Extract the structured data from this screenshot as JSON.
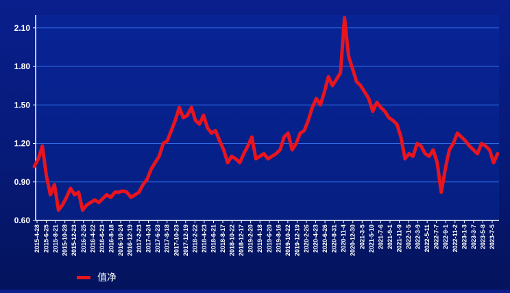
{
  "chart_data": {
    "type": "line",
    "title": "",
    "xlabel": "",
    "ylabel": "",
    "ylim": [
      0.6,
      2.2
    ],
    "yticks": [
      "0.60",
      "0.90",
      "1.20",
      "1.50",
      "1.80",
      "2.10"
    ],
    "grid": true,
    "legend_position": "bottom-left",
    "colors": {
      "line": "#e8141e",
      "grid": "#2f6fe8",
      "axis": "#ffffff",
      "text": "#ffffff"
    },
    "x_tick_labels": [
      "2015-4-28",
      "2015-6-25",
      "2015-8-21",
      "2015-10-28",
      "2015-12-23",
      "2016-2-25",
      "2016-4-22",
      "2016-6-23",
      "2016-8-18",
      "2016-10-24",
      "2016-12-19",
      "2017-2-23",
      "2017-4-24",
      "2017-6-23",
      "2017-8-18",
      "2017-10-23",
      "2017-12-19",
      "2018-2-22",
      "2018-4-23",
      "2018-6-21",
      "2018-8-17",
      "2018-10-22",
      "2018-12-17",
      "2019-2-20",
      "2019-4-18",
      "2019-6-20",
      "2019-8-16",
      "2019-10-22",
      "2019-12-19",
      "2020-2-26",
      "2020-4-23",
      "2020-6-26",
      "2020-8-31",
      "2020-11-4",
      "2020-12-30",
      "2021-3-5",
      "2021-5-10",
      "2021-7-6",
      "2021-9-1",
      "2021-11-9",
      "2022-1-5",
      "2022-3-9",
      "2022-5-11",
      "2022-7-7",
      "2022-9-1",
      "2022-11-2",
      "2023-1-3",
      "2023-3-7",
      "2023-5-8",
      "2023-7-5"
    ],
    "series": [
      {
        "name": "值净",
        "values": [
          1.02,
          1.08,
          1.18,
          0.95,
          0.8,
          0.88,
          0.68,
          0.72,
          0.78,
          0.85,
          0.8,
          0.82,
          0.68,
          0.72,
          0.74,
          0.76,
          0.74,
          0.77,
          0.8,
          0.78,
          0.82,
          0.82,
          0.83,
          0.82,
          0.78,
          0.8,
          0.82,
          0.88,
          0.92,
          1.0,
          1.05,
          1.1,
          1.2,
          1.22,
          1.3,
          1.38,
          1.48,
          1.4,
          1.42,
          1.48,
          1.38,
          1.35,
          1.42,
          1.32,
          1.28,
          1.3,
          1.22,
          1.15,
          1.05,
          1.1,
          1.08,
          1.05,
          1.12,
          1.18,
          1.25,
          1.08,
          1.1,
          1.12,
          1.08,
          1.1,
          1.12,
          1.15,
          1.25,
          1.28,
          1.15,
          1.2,
          1.28,
          1.3,
          1.38,
          1.48,
          1.55,
          1.5,
          1.6,
          1.72,
          1.65,
          1.7,
          1.75,
          2.18,
          1.88,
          1.78,
          1.68,
          1.65,
          1.6,
          1.55,
          1.45,
          1.52,
          1.48,
          1.45,
          1.4,
          1.38,
          1.35,
          1.25,
          1.08,
          1.12,
          1.1,
          1.2,
          1.18,
          1.12,
          1.1,
          1.15,
          1.05,
          0.82,
          1.0,
          1.15,
          1.2,
          1.28,
          1.25,
          1.22,
          1.18,
          1.15,
          1.12,
          1.2,
          1.18,
          1.15,
          1.05,
          1.12
        ]
      }
    ]
  }
}
